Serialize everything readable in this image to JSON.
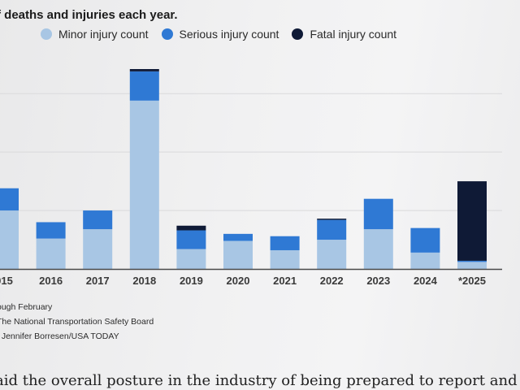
{
  "chart_data": {
    "type": "bar",
    "stacked": true,
    "title": "f deaths and injuries each year.",
    "categories": [
      "015",
      "2016",
      "2017",
      "2018",
      "2019",
      "2020",
      "2021",
      "2022",
      "2023",
      "2024",
      "*2025"
    ],
    "series": [
      {
        "name": "Minor injury count",
        "color": "#a8c6e4",
        "values": [
          50,
          26,
          34,
          144,
          17,
          24,
          16,
          25,
          34,
          14,
          6
        ]
      },
      {
        "name": "Serious injury count",
        "color": "#2f79d4",
        "values": [
          19,
          14,
          16,
          25,
          16,
          6,
          12,
          17,
          26,
          21,
          1
        ]
      },
      {
        "name": "Fatal injury count",
        "color": "#0f1a36",
        "values": [
          0,
          0,
          0,
          2,
          4,
          0,
          0,
          1,
          0,
          0,
          68
        ]
      }
    ],
    "ylim": [
      0,
      171
    ],
    "gridlines": [
      0,
      50,
      100,
      150
    ],
    "xlabel": "",
    "ylabel": "",
    "legend": "top"
  },
  "notes": {
    "line1": "ough February",
    "line2": "The National Transportation Safety Board",
    "line3": ". Jennifer Borresen/USA TODAY"
  },
  "article": {
    "text": "aid the overall posture in the industry of being prepared to report and"
  }
}
